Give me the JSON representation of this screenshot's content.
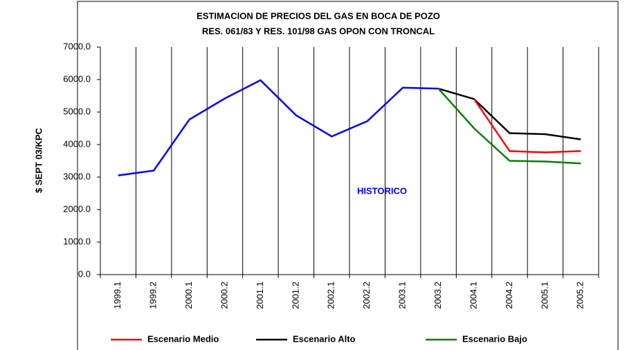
{
  "chart_data": {
    "type": "line",
    "title": "ESTIMACION DE PRECIOS DEL GAS EN BOCA DE POZO",
    "subtitle": "RES. 061/83 Y RES. 101/98 GAS OPON CON TRONCAL",
    "y_label": "$ SEPT 03/KPC",
    "annotation": "HISTORICO",
    "categories": [
      "1999.1",
      "1999.2",
      "2000.1",
      "2000.2",
      "2001.1",
      "2001.2",
      "2002.1",
      "2002.2",
      "2003.1",
      "2003.2",
      "2004.1",
      "2004.2",
      "2005.1",
      "2005.2"
    ],
    "series": [
      {
        "color": "#0000ff",
        "values": [
          3050,
          3200,
          4770,
          5420,
          5980,
          4900,
          4250,
          4720,
          5750,
          5720,
          null,
          null,
          null,
          null
        ]
      },
      {
        "name": "Escenario Alto",
        "color": "#000000",
        "values": [
          null,
          null,
          null,
          null,
          null,
          null,
          null,
          null,
          null,
          5720,
          5400,
          4350,
          4320,
          4160
        ]
      },
      {
        "name": "Escenario Medio",
        "color": "#ff0000",
        "values": [
          null,
          null,
          null,
          null,
          null,
          null,
          null,
          null,
          null,
          null,
          5400,
          3800,
          3760,
          3800
        ]
      },
      {
        "name": "Escenario Bajo",
        "color": "#008000",
        "values": [
          null,
          null,
          null,
          null,
          null,
          null,
          null,
          null,
          null,
          5720,
          4500,
          3500,
          3480,
          3420
        ]
      }
    ],
    "legend_order": [
      2,
      1,
      3
    ],
    "ylim": [
      0,
      7000
    ],
    "yticks": [
      {
        "value": 0,
        "label": "0.0"
      },
      {
        "value": 1000,
        "label": "1000.0"
      },
      {
        "value": 2000,
        "label": "2000.0"
      },
      {
        "value": 3000,
        "label": "3000.0"
      },
      {
        "value": 4000,
        "label": "4000.0"
      },
      {
        "value": 5000,
        "label": "5000.0"
      },
      {
        "value": 6000,
        "label": "6000.0"
      },
      {
        "value": 7000,
        "label": "7000.0"
      }
    ]
  }
}
